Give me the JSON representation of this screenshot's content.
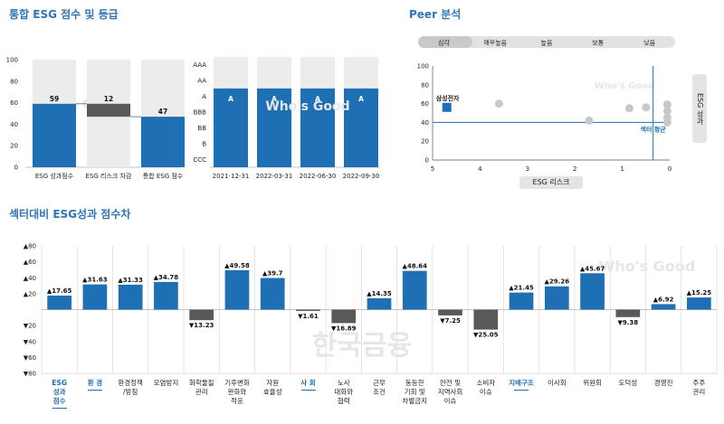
{
  "titles": {
    "integrated": "통합 ESG 점수 및 등급",
    "peer": "Peer 분석",
    "sector": "섹터대비 ESG성과 점수차"
  },
  "watermarks": {
    "whos_good": "Who's Good",
    "company": "한국금융"
  },
  "chart_data": [
    {
      "type": "bar",
      "title": "통합 ESG 점수",
      "categories": [
        "ESG 성과점수",
        "ESG 리스크 차감",
        "통합 ESG 점수"
      ],
      "values": [
        59,
        -12,
        47
      ],
      "value_labels": [
        "59",
        "12",
        "47"
      ],
      "ylim": [
        0,
        100
      ],
      "yticks": [
        0,
        20,
        40,
        60,
        80,
        100
      ],
      "background_max": 100
    },
    {
      "type": "bar",
      "title": "ESG 등급",
      "categories": [
        "2021-12-31",
        "2022-03-31",
        "2022-06-30",
        "2022-09-30"
      ],
      "grades": [
        "A",
        "A",
        "A",
        "A"
      ],
      "grade_scale": [
        "CCC",
        "B",
        "BB",
        "BBB",
        "A",
        "AA",
        "AAA"
      ]
    },
    {
      "type": "scatter",
      "title": "Peer 분석",
      "risk_pills": [
        "심각",
        "매우높음",
        "높음",
        "보통",
        "낮음"
      ],
      "xlabel": "ESG 리스크",
      "ylabel": "ESG 성과",
      "xlim": [
        5,
        0
      ],
      "ylim": [
        0,
        100
      ],
      "xticks": [
        5,
        4,
        3,
        2,
        1,
        0
      ],
      "yticks": [
        0,
        20,
        40,
        60,
        80,
        100
      ],
      "highlight": {
        "name": "삼성전자",
        "x": 4.7,
        "y": 56
      },
      "peers": [
        {
          "x": 3.6,
          "y": 60
        },
        {
          "x": 1.7,
          "y": 42
        },
        {
          "x": 0.85,
          "y": 55
        },
        {
          "x": 0.5,
          "y": 56
        },
        {
          "x": 0.05,
          "y": 59
        },
        {
          "x": 0.05,
          "y": 52
        },
        {
          "x": 0.05,
          "y": 45
        },
        {
          "x": 0.05,
          "y": 40
        }
      ],
      "sector_avg": {
        "label": "섹터 평균",
        "x": 0.35,
        "y": 40
      }
    },
    {
      "type": "bar",
      "title": "섹터대비 ESG성과 점수차",
      "categories": [
        "ESG\n성과\n점수",
        "환 경",
        "환경정책\n/방침",
        "오염방지",
        "화학물질\n관리",
        "기후변화\n완화와\n적응",
        "자원\n효율성",
        "사 회",
        "노사\n대화와\n협력",
        "근무\n조건",
        "동등한\n기회 및\n차별금지",
        "안전 및\n지역사회\n이슈",
        "소비자\n이슈",
        "지배구조",
        "이사회",
        "위원회",
        "도덕성",
        "경영진",
        "주주\n권리"
      ],
      "values": [
        17.65,
        31.63,
        31.33,
        34.78,
        -13.23,
        49.58,
        39.7,
        -1.61,
        -16.89,
        14.35,
        48.64,
        -7.25,
        -25.05,
        21.45,
        29.26,
        45.67,
        -9.38,
        6.92,
        15.25
      ],
      "value_labels": [
        "▲17.65",
        "▲31.63",
        "▲31.33",
        "▲34.78",
        "▼13.23",
        "▲49.58",
        "▲39.7",
        "▼1.61",
        "▼16.89",
        "▲14.35",
        "▲48.64",
        "▼7.25",
        "▼25.05",
        "▲21.45",
        "▲29.26",
        "▲45.67",
        "▼9.38",
        "▲6.92",
        "▲15.25"
      ],
      "highlight_categories": [
        0,
        1,
        7,
        13
      ],
      "ylim": [
        -80,
        80
      ],
      "ytick_labels": [
        "▲80",
        "▲60",
        "▲40",
        "▲20",
        "0",
        "▼20",
        "▼40",
        "▼60",
        "▼80"
      ]
    }
  ],
  "colors": {
    "bar": "#1f6fb5",
    "negative": "#595959",
    "bg_col": "#ececec",
    "peer": "#c8c8c8",
    "title": "#2f74b5"
  }
}
